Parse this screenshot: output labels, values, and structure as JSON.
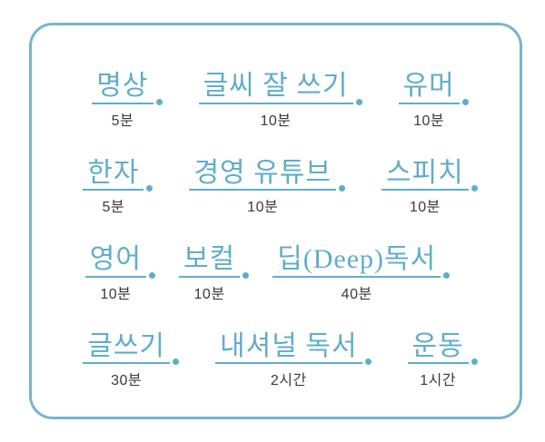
{
  "colors": {
    "accent_blue": "#5fadca",
    "border_blue": "#79b4cc",
    "duration_text": "#3b3b3b",
    "background": "#ffffff"
  },
  "schedule": {
    "rows": [
      {
        "items": [
          {
            "label": "명상",
            "duration": "5분"
          },
          {
            "label": "글씨 잘 쓰기",
            "duration": "10분"
          },
          {
            "label": "유머",
            "duration": "10분"
          }
        ]
      },
      {
        "items": [
          {
            "label": "한자",
            "duration": "5분"
          },
          {
            "label": "경영 유튜브",
            "duration": "10분"
          },
          {
            "label": "스피치",
            "duration": "10분"
          }
        ]
      },
      {
        "items": [
          {
            "label": "영어",
            "duration": "10분"
          },
          {
            "label": "보컬",
            "duration": "10분"
          },
          {
            "label": "딥(Deep)독서",
            "duration": "40분"
          }
        ]
      },
      {
        "items": [
          {
            "label": "글쓰기",
            "duration": "30분"
          },
          {
            "label": "내셔널 독서",
            "duration": "2시간"
          },
          {
            "label": "운동",
            "duration": "1시간"
          }
        ]
      }
    ]
  }
}
